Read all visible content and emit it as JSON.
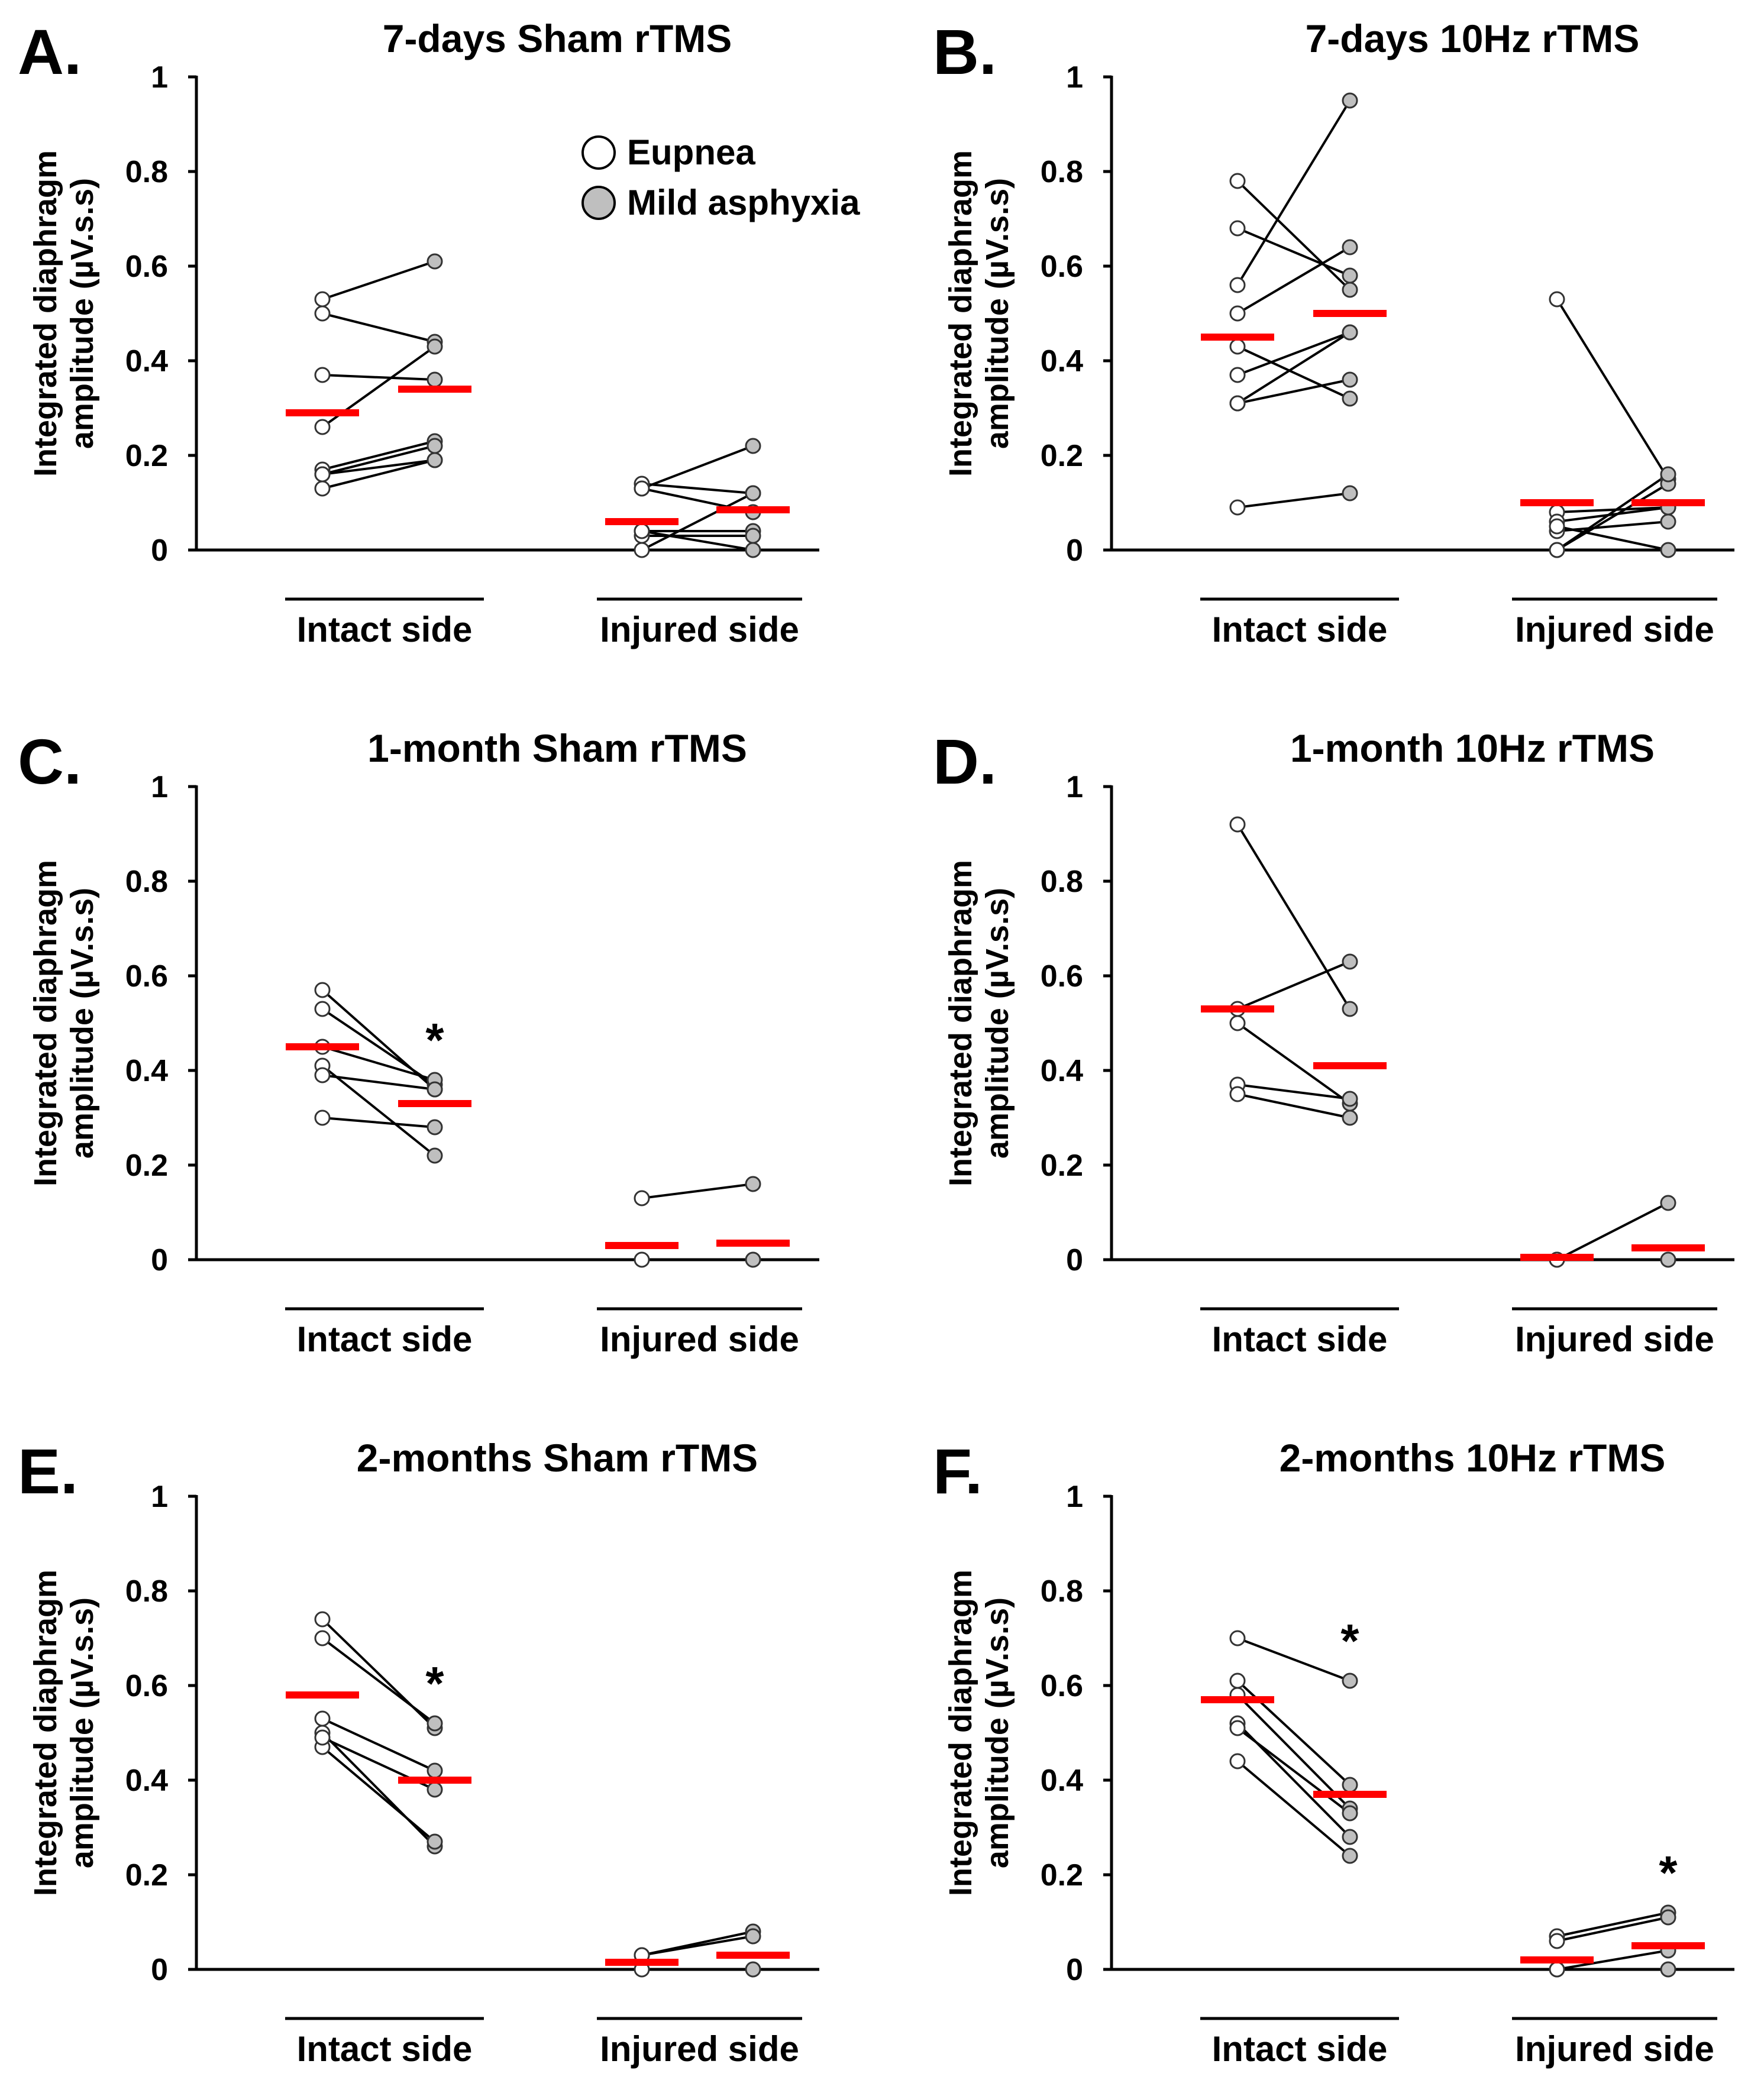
{
  "figure": {
    "y_axis_label_line1": "Integrated diaphragm",
    "y_axis_label_line2": "amplitude (µV.s.s)",
    "legend": [
      {
        "label": "Eupnea",
        "fill": "#ffffff"
      },
      {
        "label": "Mild asphyxia",
        "fill": "#bfbfbf"
      }
    ],
    "mean_color": "#ff0000",
    "groups": [
      "Intact side",
      "Injured side"
    ]
  },
  "chart_data": [
    {
      "type": "scatter",
      "letter": "A.",
      "title": "7-days Sham rTMS",
      "ylim": [
        0,
        1
      ],
      "yticks": [
        0,
        0.2,
        0.4,
        0.6,
        0.8,
        1
      ],
      "yticklabels": [
        "0",
        "0.2",
        "0.4",
        "0.6",
        "0.8",
        "1"
      ],
      "intact": {
        "pairs": [
          [
            0.53,
            0.61
          ],
          [
            0.5,
            0.44
          ],
          [
            0.37,
            0.36
          ],
          [
            0.26,
            0.43
          ],
          [
            0.17,
            0.23
          ],
          [
            0.16,
            0.22
          ],
          [
            0.16,
            0.19
          ],
          [
            0.13,
            0.19
          ]
        ],
        "means": [
          0.29,
          0.34
        ],
        "significant": false
      },
      "injured": {
        "pairs": [
          [
            0.13,
            0.22
          ],
          [
            0.14,
            0.12
          ],
          [
            0.13,
            0.08
          ],
          [
            0.04,
            0.04
          ],
          [
            0.03,
            0.03
          ],
          [
            0,
            0.12
          ],
          [
            0.04,
            0
          ]
        ],
        "means": [
          0.06,
          0.085
        ],
        "significant": false
      },
      "legend": true
    },
    {
      "type": "scatter",
      "letter": "B.",
      "title": "7-days 10Hz rTMS",
      "ylim": [
        0,
        1
      ],
      "yticks": [
        0,
        0.2,
        0.4,
        0.6,
        0.8,
        1
      ],
      "yticklabels": [
        "0",
        "0.2",
        "0.4",
        "0.6",
        "0.8",
        "1"
      ],
      "intact": {
        "pairs": [
          [
            0.78,
            0.55
          ],
          [
            0.68,
            0.58
          ],
          [
            0.56,
            0.95
          ],
          [
            0.5,
            0.64
          ],
          [
            0.43,
            0.32
          ],
          [
            0.37,
            0.46
          ],
          [
            0.31,
            0.46
          ],
          [
            0.31,
            0.36
          ],
          [
            0.09,
            0.12
          ]
        ],
        "means": [
          0.45,
          0.5
        ],
        "significant": false
      },
      "injured": {
        "pairs": [
          [
            0.53,
            0.15
          ],
          [
            0.08,
            0.09
          ],
          [
            0.06,
            0.09
          ],
          [
            0.04,
            0.06
          ],
          [
            0,
            0.14
          ],
          [
            0,
            0.16
          ],
          [
            0.05,
            0
          ]
        ],
        "means": [
          0.1,
          0.1
        ],
        "significant": false
      },
      "legend": false
    },
    {
      "type": "scatter",
      "letter": "C.",
      "title": "1-month Sham rTMS",
      "ylim": [
        0,
        1
      ],
      "yticks": [
        0,
        0.2,
        0.4,
        0.6,
        0.8,
        1
      ],
      "yticklabels": [
        "0",
        "0.2",
        "0.4",
        "0.6",
        "0.8",
        "1"
      ],
      "intact": {
        "pairs": [
          [
            0.57,
            0.36
          ],
          [
            0.53,
            0.37
          ],
          [
            0.45,
            0.38
          ],
          [
            0.41,
            0.22
          ],
          [
            0.39,
            0.36
          ],
          [
            0.3,
            0.28
          ]
        ],
        "means": [
          0.45,
          0.33
        ],
        "significant": true
      },
      "injured": {
        "pairs": [
          [
            0.13,
            0.16
          ],
          [
            0,
            0
          ]
        ],
        "means": [
          0.03,
          0.035
        ],
        "significant": false
      },
      "legend": false
    },
    {
      "type": "scatter",
      "letter": "D.",
      "title": "1-month 10Hz rTMS",
      "ylim": [
        0,
        1
      ],
      "yticks": [
        0,
        0.2,
        0.4,
        0.6,
        0.8,
        1
      ],
      "yticklabels": [
        "0",
        "0.2",
        "0.4",
        "0.6",
        "0.8",
        "1"
      ],
      "intact": {
        "pairs": [
          [
            0.92,
            0.53
          ],
          [
            0.53,
            0.63
          ],
          [
            0.5,
            0.33
          ],
          [
            0.37,
            0.34
          ],
          [
            0.35,
            0.3
          ]
        ],
        "means": [
          0.53,
          0.41
        ],
        "significant": false
      },
      "injured": {
        "pairs": [
          [
            0,
            0.12
          ],
          [
            0,
            0
          ]
        ],
        "means": [
          0.005,
          0.025
        ],
        "significant": false
      },
      "legend": false
    },
    {
      "type": "scatter",
      "letter": "E.",
      "title": "2-months Sham rTMS",
      "ylim": [
        0,
        1
      ],
      "yticks": [
        0,
        0.2,
        0.4,
        0.6,
        0.8,
        1
      ],
      "yticklabels": [
        "0",
        "0.2",
        "0.4",
        "0.6",
        "0.8",
        "1"
      ],
      "intact": {
        "pairs": [
          [
            0.74,
            0.51
          ],
          [
            0.7,
            0.52
          ],
          [
            0.53,
            0.42
          ],
          [
            0.5,
            0.26
          ],
          [
            0.47,
            0.27
          ],
          [
            0.49,
            0.38
          ]
        ],
        "means": [
          0.58,
          0.4
        ],
        "significant": true
      },
      "injured": {
        "pairs": [
          [
            0.03,
            0.08
          ],
          [
            0.03,
            0.07
          ],
          [
            0,
            0
          ]
        ],
        "means": [
          0.015,
          0.03
        ],
        "significant": false
      },
      "legend": false
    },
    {
      "type": "scatter",
      "letter": "F.",
      "title": "2-months 10Hz rTMS",
      "ylim": [
        0,
        1
      ],
      "yticks": [
        0,
        0.2,
        0.4,
        0.6,
        0.8,
        1
      ],
      "yticklabels": [
        "0",
        "0.2",
        "0.4",
        "0.6",
        "0.8",
        "1"
      ],
      "intact": {
        "pairs": [
          [
            0.7,
            0.61
          ],
          [
            0.61,
            0.39
          ],
          [
            0.58,
            0.34
          ],
          [
            0.52,
            0.28
          ],
          [
            0.51,
            0.33
          ],
          [
            0.44,
            0.24
          ]
        ],
        "means": [
          0.57,
          0.37
        ],
        "significant": true
      },
      "injured": {
        "pairs": [
          [
            0.07,
            0.12
          ],
          [
            0.06,
            0.11
          ],
          [
            0,
            0.04
          ],
          [
            0,
            0
          ]
        ],
        "means": [
          0.02,
          0.05
        ],
        "significant": true
      },
      "legend": false
    }
  ],
  "significance_marker": "*"
}
